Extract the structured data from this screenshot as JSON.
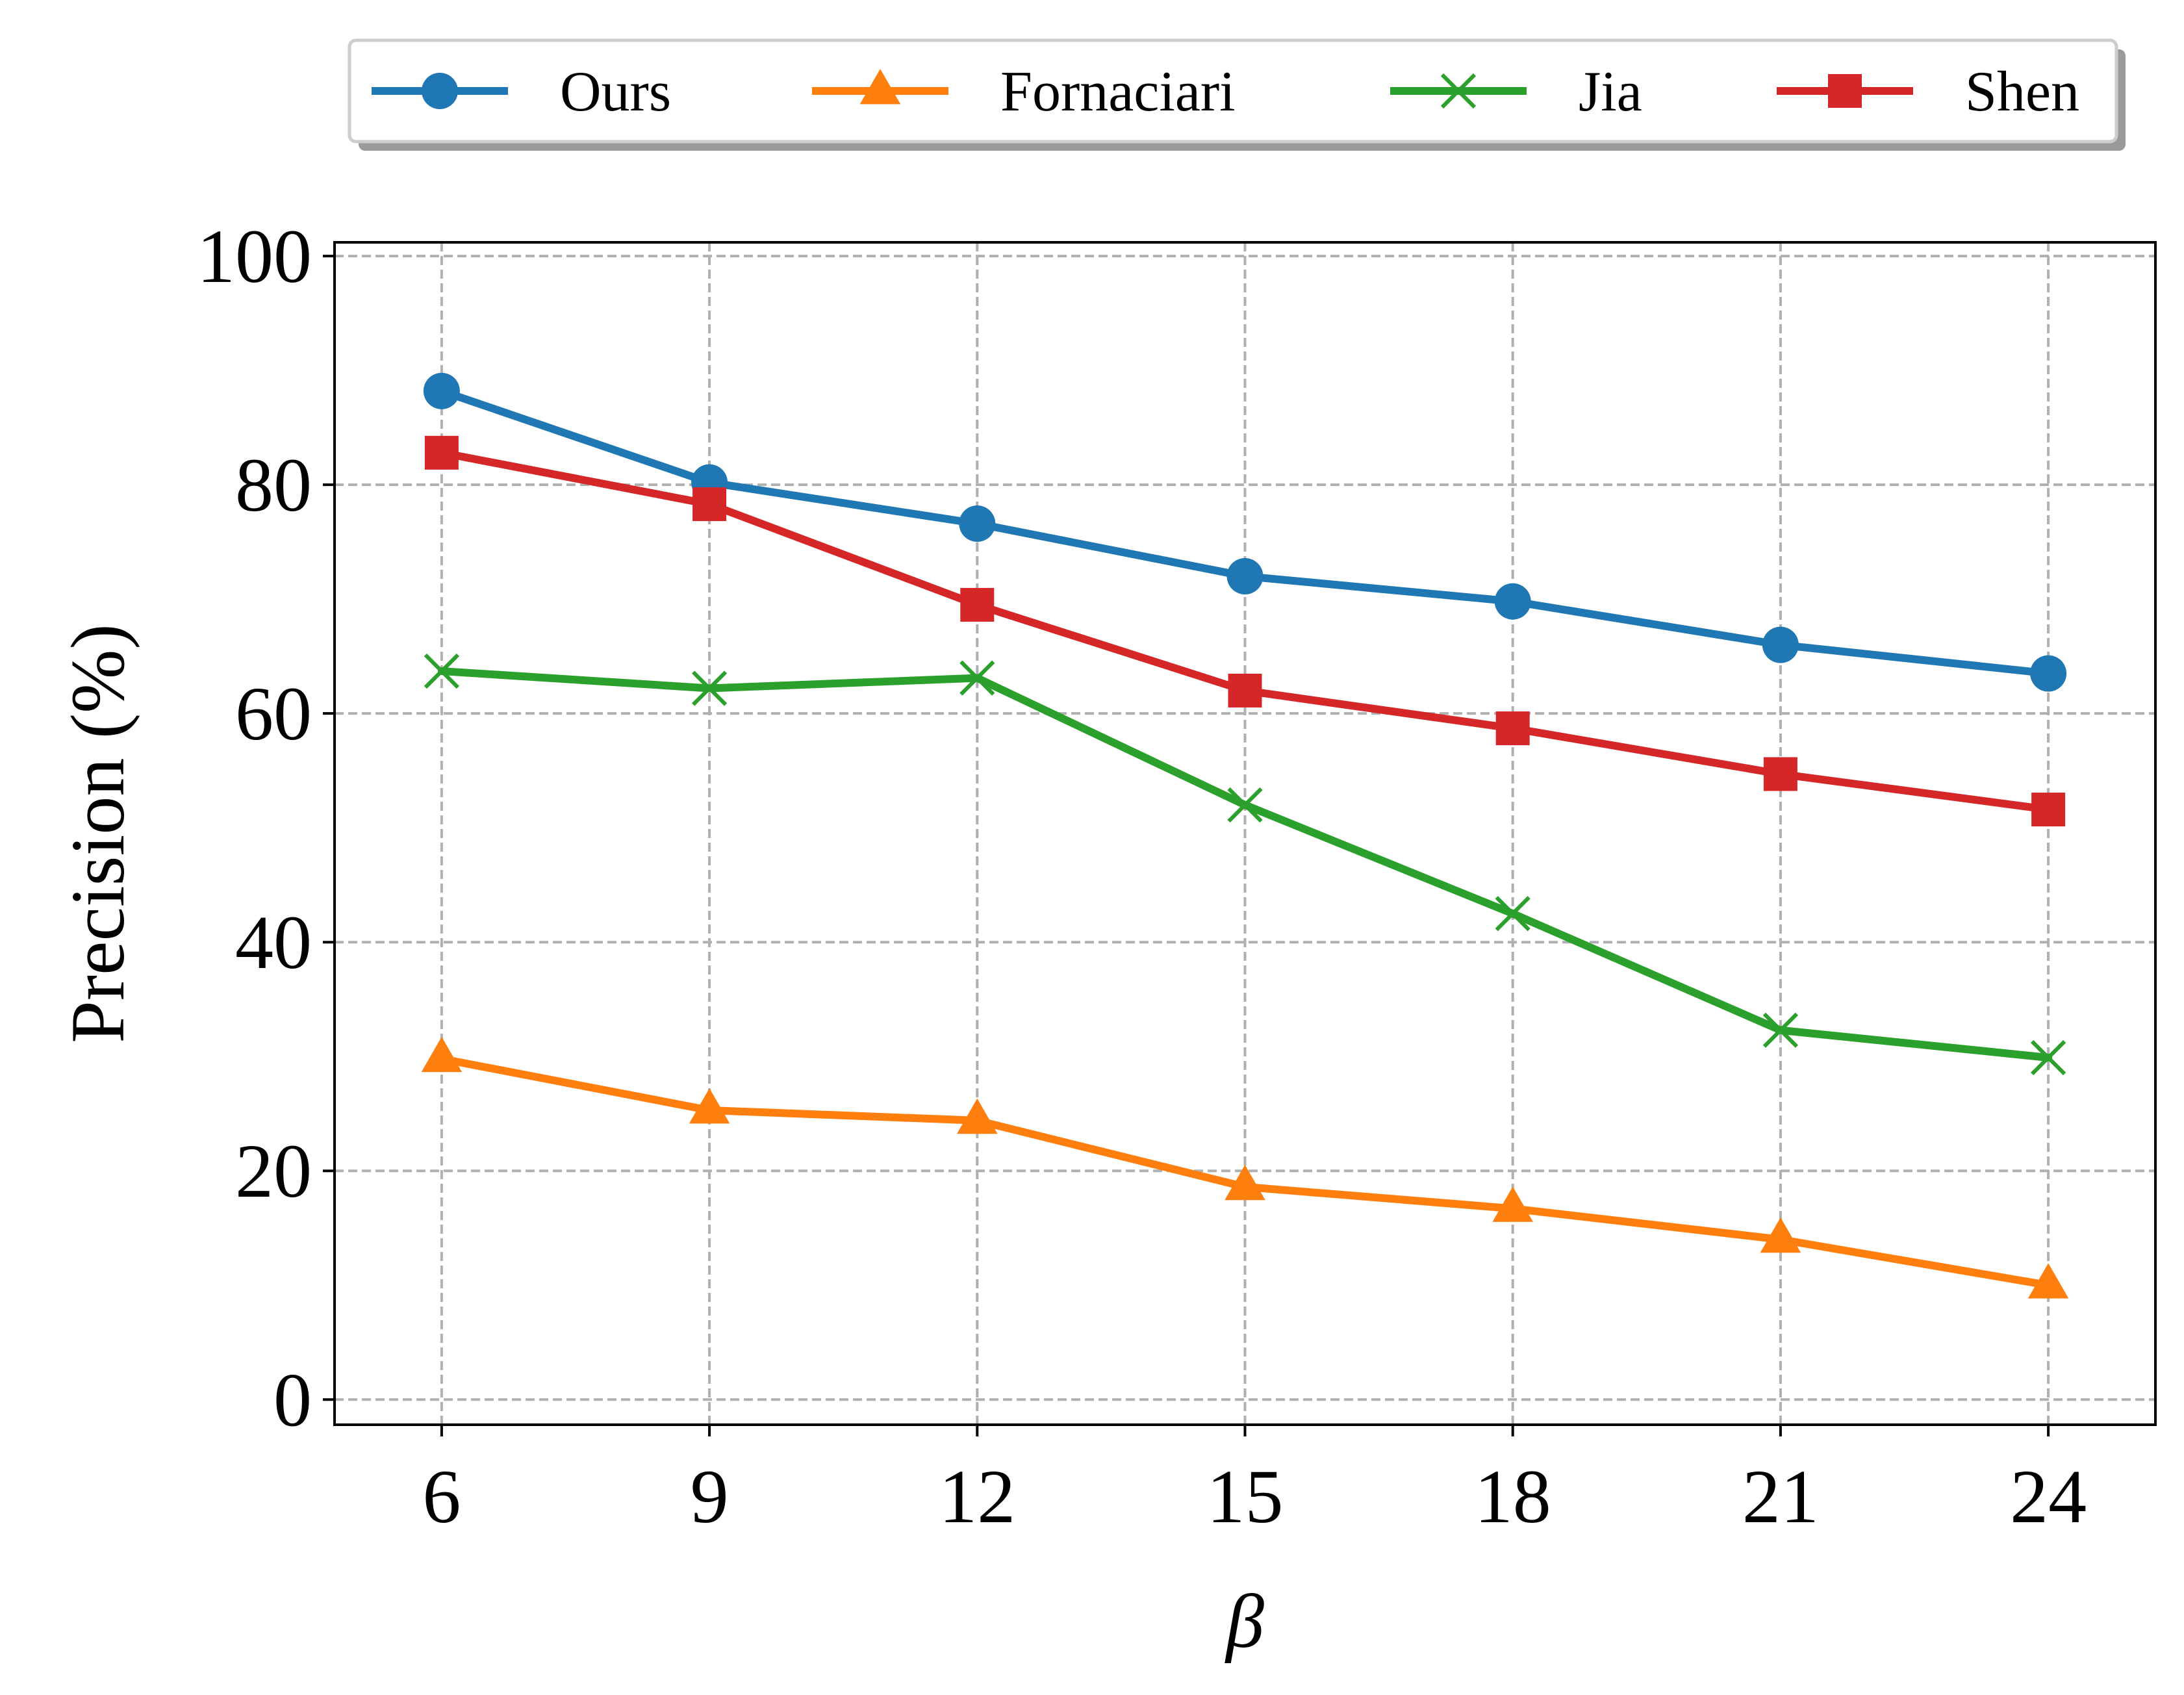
{
  "chart_data": {
    "type": "line",
    "title": "",
    "xlabel": "β",
    "ylabel": "Precision (%)",
    "x": [
      6,
      9,
      12,
      15,
      18,
      21,
      24
    ],
    "x_ticks": [
      "6",
      "9",
      "12",
      "15",
      "18",
      "21",
      "24"
    ],
    "y_ticks": [
      "0",
      "20",
      "40",
      "60",
      "80",
      "100"
    ],
    "ylim": [
      0,
      100
    ],
    "grid": true,
    "legend_position": "top",
    "series": [
      {
        "name": "Ours",
        "color": "#1f77b4",
        "marker": "circle",
        "values": [
          88.2,
          80.2,
          76.6,
          72.0,
          69.8,
          66.0,
          63.5
        ]
      },
      {
        "name": "Fornaciari",
        "color": "#ff7f0e",
        "marker": "triangle",
        "values": [
          29.8,
          25.3,
          24.4,
          18.6,
          16.7,
          14.0,
          10.0
        ]
      },
      {
        "name": "Jia",
        "color": "#2ca02c",
        "marker": "x",
        "values": [
          63.7,
          62.2,
          63.1,
          52.0,
          42.5,
          32.3,
          29.9
        ]
      },
      {
        "name": "Shen",
        "color": "#d62728",
        "marker": "square",
        "values": [
          82.8,
          78.3,
          69.5,
          62.0,
          58.7,
          54.7,
          51.6
        ]
      }
    ]
  }
}
